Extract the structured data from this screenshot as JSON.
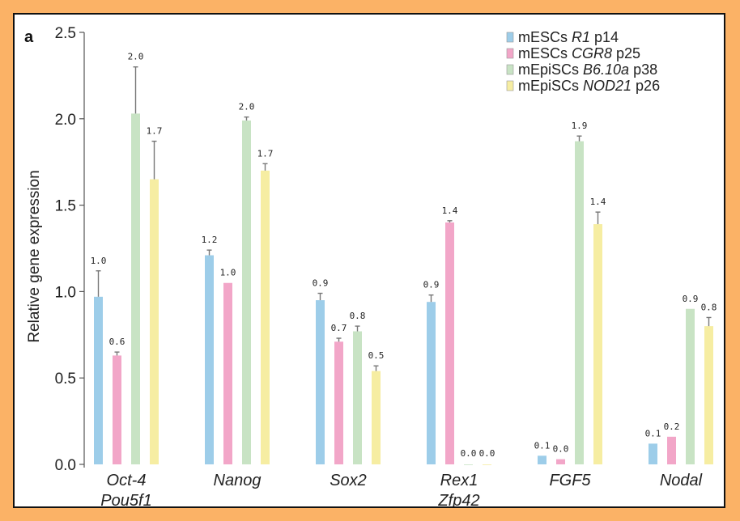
{
  "panel_label": "a",
  "chart_data": {
    "type": "bar",
    "ylabel": "Relative gene expression",
    "ylim": [
      0,
      2.5
    ],
    "yticks": [
      "0.0",
      "0.5",
      "1.0",
      "1.5",
      "2.0",
      "2.5"
    ],
    "categories": [
      [
        "Oct-4",
        "Pou5f1"
      ],
      [
        "Nanog"
      ],
      [
        "Sox2"
      ],
      [
        "Rex1",
        "Zfp42"
      ],
      [
        "FGF5"
      ],
      [
        "Nodal"
      ]
    ],
    "series": [
      {
        "name": "mESCs R1 p14",
        "name_plain": "mESCs ",
        "name_italic": "R1",
        "name_suffix": " p14",
        "color": "#9dcde9",
        "values": [
          0.97,
          1.21,
          0.95,
          0.94,
          0.05,
          0.12
        ],
        "errors": [
          0.15,
          0.03,
          0.04,
          0.04,
          0.0,
          0.0
        ],
        "labels": [
          "1.0",
          "1.2",
          "0.9",
          "0.9",
          "0.1",
          "0.1"
        ]
      },
      {
        "name": "mESCs CGR8 p25",
        "name_plain": "mESCs ",
        "name_italic": "CGR8",
        "name_suffix": " p25",
        "color": "#f2a6c8",
        "values": [
          0.63,
          1.05,
          0.71,
          1.4,
          0.03,
          0.16
        ],
        "errors": [
          0.02,
          0.0,
          0.02,
          0.01,
          0.0,
          0.0
        ],
        "labels": [
          "0.6",
          "1.0",
          "0.7",
          "1.4",
          "0.0",
          "0.2"
        ]
      },
      {
        "name": "mEpiSCs B6.10a p38",
        "name_plain": "mEpiSCs ",
        "name_italic": "B6.10a",
        "name_suffix": " p38",
        "color": "#c8e3c4",
        "values": [
          2.03,
          1.99,
          0.77,
          0.0,
          1.87,
          0.9
        ],
        "errors": [
          0.27,
          0.02,
          0.03,
          0.0,
          0.03,
          0.0
        ],
        "labels": [
          "2.0",
          "2.0",
          "0.8",
          "0.0",
          "1.9",
          "0.9"
        ]
      },
      {
        "name": "mEpiSCs NOD21 p26",
        "name_plain": "mEpiSCs ",
        "name_italic": "NOD21",
        "name_suffix": " p26",
        "color": "#f6eda2",
        "values": [
          1.65,
          1.7,
          0.54,
          0.0,
          1.39,
          0.8
        ],
        "errors": [
          0.22,
          0.04,
          0.03,
          0.0,
          0.07,
          0.05
        ],
        "labels": [
          "1.7",
          "1.7",
          "0.5",
          "0.0",
          "1.4",
          "0.8"
        ]
      }
    ],
    "legend_position": "top-right"
  }
}
